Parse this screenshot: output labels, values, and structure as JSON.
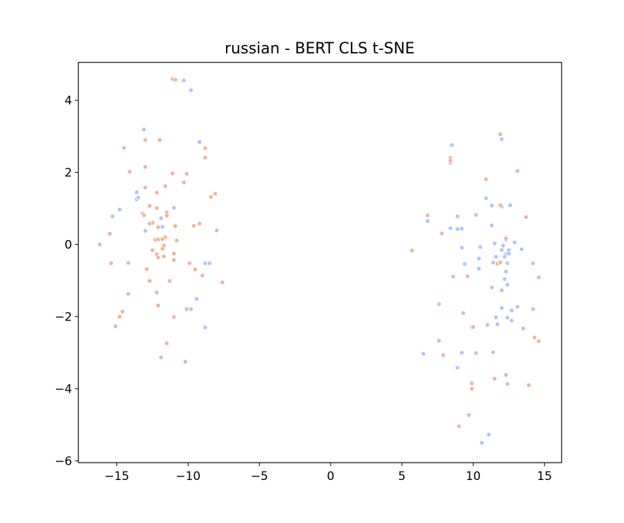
{
  "chart_data": {
    "type": "scatter",
    "title": "russian - BERT CLS t-SNE",
    "xlabel": "",
    "ylabel": "",
    "xlim": [
      -17.7,
      16.2
    ],
    "ylim": [
      -6.05,
      5.05
    ],
    "x_ticks": [
      -15,
      -10,
      -5,
      0,
      5,
      10,
      15
    ],
    "y_ticks": [
      -6,
      -4,
      -2,
      0,
      2,
      4
    ],
    "x_tick_labels": [
      "−15",
      "−10",
      "−5",
      "0",
      "5",
      "10",
      "15"
    ],
    "y_tick_labels": [
      "−6",
      "−4",
      "−2",
      "0",
      "2",
      "4"
    ],
    "grid": false,
    "legend": "none",
    "series": [
      {
        "color": "#aec7f8",
        "points": [
          [
            -16.2,
            0.0
          ],
          [
            -15.3,
            0.78
          ],
          [
            -15.1,
            -2.27
          ],
          [
            -14.8,
            0.97
          ],
          [
            -14.5,
            2.68
          ],
          [
            -13.1,
            3.19
          ],
          [
            -13.6,
            1.45
          ],
          [
            -13.6,
            1.25
          ],
          [
            -13.5,
            1.3
          ],
          [
            -13.0,
            0.38
          ],
          [
            -12.2,
            -1.33
          ],
          [
            -11.9,
            0.73
          ],
          [
            -11.8,
            0.49
          ],
          [
            -11.9,
            -3.13
          ],
          [
            -11.0,
            1.02
          ],
          [
            -10.3,
            4.55
          ],
          [
            -9.8,
            4.28
          ],
          [
            -9.2,
            2.84
          ],
          [
            -9.4,
            -1.51
          ],
          [
            -9.8,
            -1.79
          ],
          [
            -8.8,
            -2.3
          ],
          [
            -8.8,
            -0.52
          ],
          [
            -8.5,
            -0.52
          ],
          [
            -8.0,
            0.39
          ],
          [
            8.5,
            2.76
          ],
          [
            8.4,
            2.27
          ],
          [
            12.0,
            2.92
          ],
          [
            10.9,
            1.28
          ],
          [
            12.6,
            1.09
          ],
          [
            11.3,
            1.08
          ],
          [
            10.2,
            0.82
          ],
          [
            8.9,
            0.78
          ],
          [
            11.3,
            0.53
          ],
          [
            8.4,
            0.45
          ],
          [
            8.9,
            0.43
          ],
          [
            9.2,
            0.44
          ],
          [
            6.8,
            0.65
          ],
          [
            12.0,
            1.05
          ],
          [
            12.3,
            0.13
          ],
          [
            12.9,
            0.06
          ],
          [
            12.1,
            -0.03
          ],
          [
            11.5,
            0.03
          ],
          [
            9.2,
            -0.09
          ],
          [
            10.5,
            -0.07
          ],
          [
            12.5,
            -0.16
          ],
          [
            12.0,
            -0.15
          ],
          [
            12.3,
            -0.27
          ],
          [
            12.5,
            -0.25
          ],
          [
            13.4,
            -0.13
          ],
          [
            11.6,
            -0.34
          ],
          [
            12.2,
            -0.34
          ],
          [
            10.4,
            -0.39
          ],
          [
            9.4,
            -0.54
          ],
          [
            11.4,
            -0.5
          ],
          [
            12.4,
            -0.52
          ],
          [
            14.2,
            -0.52
          ],
          [
            10.4,
            -0.67
          ],
          [
            12.3,
            -0.75
          ],
          [
            8.6,
            -0.89
          ],
          [
            12.2,
            -0.96
          ],
          [
            12.4,
            -1.12
          ],
          [
            11.3,
            -1.19
          ],
          [
            12.0,
            -1.27
          ],
          [
            7.6,
            -1.65
          ],
          [
            13.1,
            -1.73
          ],
          [
            12.0,
            -1.76
          ],
          [
            12.7,
            -1.83
          ],
          [
            14.2,
            -1.79
          ],
          [
            9.3,
            -1.9
          ],
          [
            11.6,
            -2.02
          ],
          [
            12.4,
            -2.03
          ],
          [
            12.7,
            -2.11
          ],
          [
            9.9,
            -2.29
          ],
          [
            11.0,
            -2.23
          ],
          [
            11.7,
            -2.21
          ],
          [
            13.5,
            -2.33
          ],
          [
            7.6,
            -2.67
          ],
          [
            6.5,
            -3.03
          ],
          [
            9.2,
            -3.0
          ],
          [
            10.2,
            -3.01
          ],
          [
            11.4,
            -2.99
          ],
          [
            8.9,
            -3.42
          ],
          [
            12.3,
            -3.62
          ],
          [
            12.4,
            -3.87
          ],
          [
            11.1,
            -5.27
          ],
          [
            9.7,
            -4.73
          ],
          [
            10.6,
            -5.5
          ]
        ]
      },
      {
        "color": "#f2b49a",
        "points": [
          [
            -11.1,
            4.59
          ],
          [
            -10.9,
            4.57
          ],
          [
            -13.0,
            2.9
          ],
          [
            -12.0,
            2.9
          ],
          [
            -8.8,
            2.67
          ],
          [
            -8.8,
            2.41
          ],
          [
            -13.0,
            2.15
          ],
          [
            -14.1,
            2.02
          ],
          [
            -11.1,
            1.97
          ],
          [
            -10.1,
            1.96
          ],
          [
            -10.3,
            1.72
          ],
          [
            -13.0,
            1.58
          ],
          [
            -11.6,
            1.62
          ],
          [
            -12.2,
            1.44
          ],
          [
            -8.1,
            1.41
          ],
          [
            -8.4,
            1.32
          ],
          [
            -12.7,
            1.07
          ],
          [
            -12.2,
            1.01
          ],
          [
            -11.5,
            0.89
          ],
          [
            -13.2,
            0.86
          ],
          [
            -13.1,
            0.81
          ],
          [
            -11.5,
            0.8
          ],
          [
            -12.5,
            0.6
          ],
          [
            -12.7,
            0.58
          ],
          [
            -9.2,
            0.58
          ],
          [
            -9.6,
            0.52
          ],
          [
            -10.9,
            0.51
          ],
          [
            -12.1,
            0.48
          ],
          [
            -15.5,
            0.3
          ],
          [
            -11.6,
            0.2
          ],
          [
            -11.8,
            0.15
          ],
          [
            -12.3,
            0.13
          ],
          [
            -12.1,
            0.14
          ],
          [
            -10.8,
            0.11
          ],
          [
            -11.7,
            -0.03
          ],
          [
            -11.8,
            -0.12
          ],
          [
            -12.5,
            -0.16
          ],
          [
            -12.2,
            -0.27
          ],
          [
            -11.0,
            -0.25
          ],
          [
            -12.1,
            -0.36
          ],
          [
            -11.7,
            -0.33
          ],
          [
            -15.4,
            -0.52
          ],
          [
            -14.2,
            -0.51
          ],
          [
            -11.0,
            -0.43
          ],
          [
            -9.9,
            -0.52
          ],
          [
            -12.9,
            -0.68
          ],
          [
            -9.5,
            -0.69
          ],
          [
            -9.0,
            -0.86
          ],
          [
            -12.7,
            -1.01
          ],
          [
            -11.3,
            -1.01
          ],
          [
            -7.6,
            -1.05
          ],
          [
            -14.2,
            -1.37
          ],
          [
            -12.1,
            -1.69
          ],
          [
            -10.1,
            -1.79
          ],
          [
            -14.6,
            -1.86
          ],
          [
            -14.8,
            -2.0
          ],
          [
            -11.0,
            -2.01
          ],
          [
            -11.5,
            -2.74
          ],
          [
            -10.2,
            -3.25
          ],
          [
            11.9,
            3.06
          ],
          [
            8.4,
            2.4
          ],
          [
            8.4,
            2.33
          ],
          [
            13.1,
            2.04
          ],
          [
            10.9,
            1.81
          ],
          [
            11.9,
            1.09
          ],
          [
            13.7,
            0.76
          ],
          [
            6.8,
            0.81
          ],
          [
            7.8,
            0.31
          ],
          [
            12.3,
            0.17
          ],
          [
            5.7,
            -0.17
          ],
          [
            11.7,
            -0.53
          ],
          [
            11.9,
            -0.5
          ],
          [
            9.6,
            -0.88
          ],
          [
            14.6,
            -0.91
          ],
          [
            10.0,
            -2.29
          ],
          [
            14.3,
            -2.58
          ],
          [
            14.6,
            -2.68
          ],
          [
            7.9,
            -3.07
          ],
          [
            11.5,
            -3.72
          ],
          [
            9.9,
            -3.85
          ],
          [
            9.9,
            -4.0
          ],
          [
            13.9,
            -3.9
          ],
          [
            9.0,
            -5.04
          ]
        ]
      }
    ]
  }
}
